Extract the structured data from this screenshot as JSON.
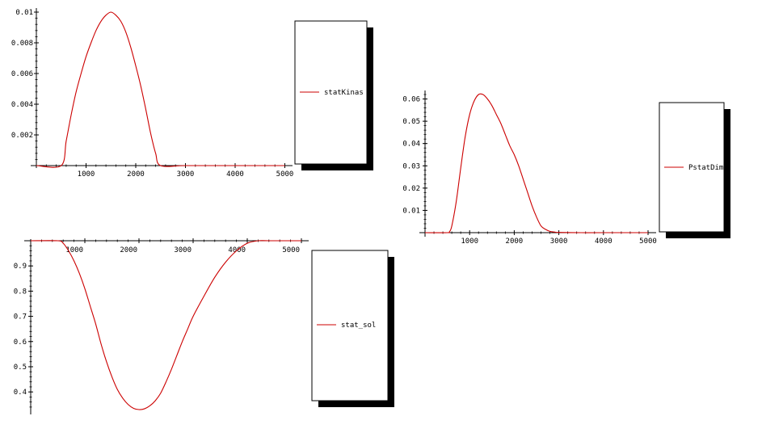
{
  "chart_data": [
    {
      "type": "line",
      "series": [
        {
          "name": "statKinase",
          "legend_visible_text": "statKinas",
          "color": "#cc0000",
          "x": [
            0,
            500,
            600,
            700,
            800,
            900,
            1000,
            1100,
            1200,
            1300,
            1400,
            1500,
            1600,
            1700,
            1800,
            1900,
            2000,
            2100,
            2200,
            2300,
            2400,
            2500,
            3000,
            4000,
            5000
          ],
          "y": [
            0,
            0,
            0.0016,
            0.0033,
            0.0048,
            0.006,
            0.0071,
            0.008,
            0.0088,
            0.0094,
            0.0098,
            0.01,
            0.0098,
            0.0094,
            0.0087,
            0.0077,
            0.0065,
            0.0052,
            0.0037,
            0.0021,
            0.0008,
            0,
            0,
            0,
            0
          ]
        }
      ],
      "xlim": [
        0,
        5100
      ],
      "ylim": [
        0,
        0.01
      ],
      "x_ticks": [
        "1000",
        "2000",
        "3000",
        "4000",
        "5000"
      ],
      "y_ticks": [
        "0.002",
        "0.004",
        "0.006",
        "0.008",
        "0.01"
      ],
      "grid": false,
      "legend": "right"
    },
    {
      "type": "line",
      "series": [
        {
          "name": "PstatDimer",
          "legend_visible_text": "PstatDim",
          "color": "#cc0000",
          "x": [
            0,
            500,
            550,
            600,
            700,
            800,
            900,
            1000,
            1100,
            1200,
            1300,
            1400,
            1500,
            1600,
            1700,
            1800,
            1900,
            2000,
            2100,
            2200,
            2300,
            2400,
            2500,
            2600,
            2700,
            2800,
            2900,
            3000,
            3500,
            4000,
            5000
          ],
          "y": [
            0,
            0,
            0.0005,
            0.003,
            0.014,
            0.029,
            0.043,
            0.053,
            0.059,
            0.062,
            0.062,
            0.06,
            0.057,
            0.053,
            0.049,
            0.044,
            0.039,
            0.035,
            0.03,
            0.024,
            0.018,
            0.012,
            0.007,
            0.003,
            0.0015,
            0.0006,
            0.0003,
            0.0001,
            0,
            0,
            0
          ]
        }
      ],
      "xlim": [
        0,
        5100
      ],
      "ylim": [
        0,
        0.062
      ],
      "x_ticks": [
        "1000",
        "2000",
        "3000",
        "4000",
        "5000"
      ],
      "y_ticks": [
        "0.01",
        "0.02",
        "0.03",
        "0.04",
        "0.05",
        "0.06"
      ],
      "grid": false,
      "legend": "right"
    },
    {
      "type": "line",
      "series": [
        {
          "name": "stat_sol",
          "legend_visible_text": "stat_sol",
          "color": "#cc0000",
          "x": [
            0,
            500,
            600,
            700,
            800,
            900,
            1000,
            1100,
            1200,
            1300,
            1400,
            1500,
            1600,
            1700,
            1800,
            1900,
            2000,
            2100,
            2200,
            2300,
            2400,
            2500,
            2600,
            2700,
            2800,
            2900,
            3000,
            3200,
            3400,
            3600,
            3800,
            4000,
            4200,
            4400,
            5000
          ],
          "y": [
            1.0,
            1.0,
            0.99,
            0.96,
            0.92,
            0.87,
            0.81,
            0.74,
            0.67,
            0.59,
            0.52,
            0.46,
            0.41,
            0.375,
            0.35,
            0.335,
            0.33,
            0.333,
            0.345,
            0.365,
            0.395,
            0.44,
            0.49,
            0.545,
            0.6,
            0.65,
            0.7,
            0.78,
            0.855,
            0.915,
            0.96,
            0.99,
            1.0,
            1.0,
            1.0
          ]
        }
      ],
      "xlim": [
        0,
        5100
      ],
      "ylim": [
        0.33,
        1.0
      ],
      "x_ticks": [
        "1000",
        "2000",
        "3000",
        "4000",
        "5000"
      ],
      "y_ticks": [
        "0.4",
        "0.5",
        "0.6",
        "0.7",
        "0.8",
        "0.9"
      ],
      "grid": false,
      "legend": "right"
    }
  ]
}
